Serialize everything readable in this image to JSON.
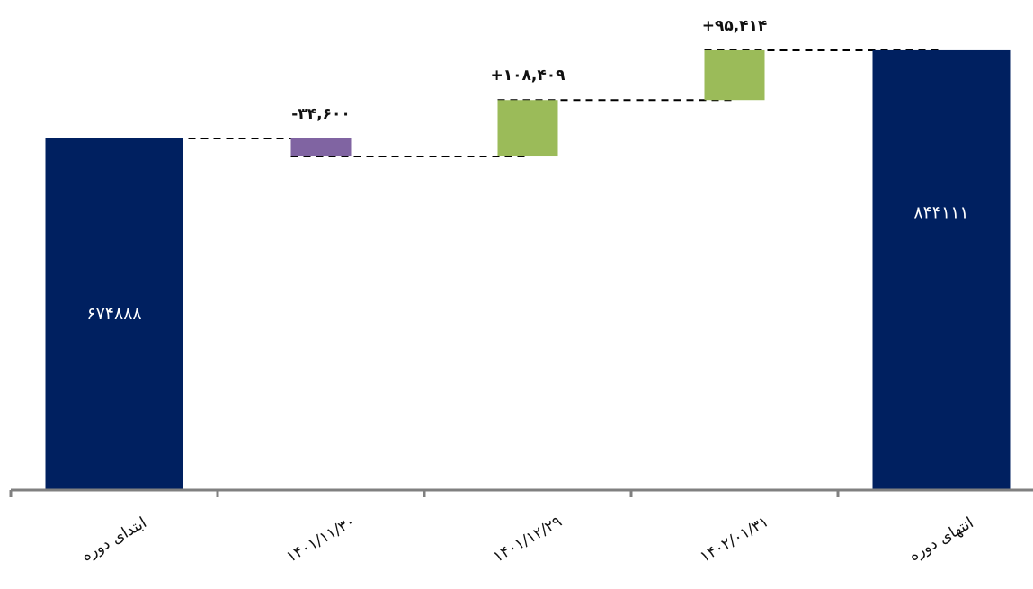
{
  "chart_data": {
    "type": "bar",
    "subtype": "waterfall",
    "title": "",
    "xlabel": "",
    "ylabel": "",
    "ylim": [
      0,
      863000
    ],
    "grid": false,
    "legend": "none",
    "categories": [
      "ابتدای دوره",
      "۱۴۰۱/۱۱/۳۰",
      "۱۴۰۱/۱۲/۲۹",
      "۱۴۰۲/۰۱/۳۱",
      "انتهای دوره"
    ],
    "bars": [
      {
        "kind": "total",
        "start": 0,
        "value": 674888,
        "label": "۶۷۴۸۸۸",
        "color": "#002060"
      },
      {
        "kind": "delta",
        "start": 674888,
        "value": -34600,
        "label": "-۳۴,۶۰۰",
        "color": "#8064A2"
      },
      {
        "kind": "delta",
        "start": 640288,
        "value": 108409,
        "label": "+۱۰۸,۴۰۹",
        "color": "#9BBB59"
      },
      {
        "kind": "delta",
        "start": 748697,
        "value": 95414,
        "label": "+۹۵,۴۱۴",
        "color": "#9BBB59"
      },
      {
        "kind": "total",
        "start": 0,
        "value": 844111,
        "label": "۸۴۴۱۱۱",
        "color": "#002060"
      }
    ]
  }
}
